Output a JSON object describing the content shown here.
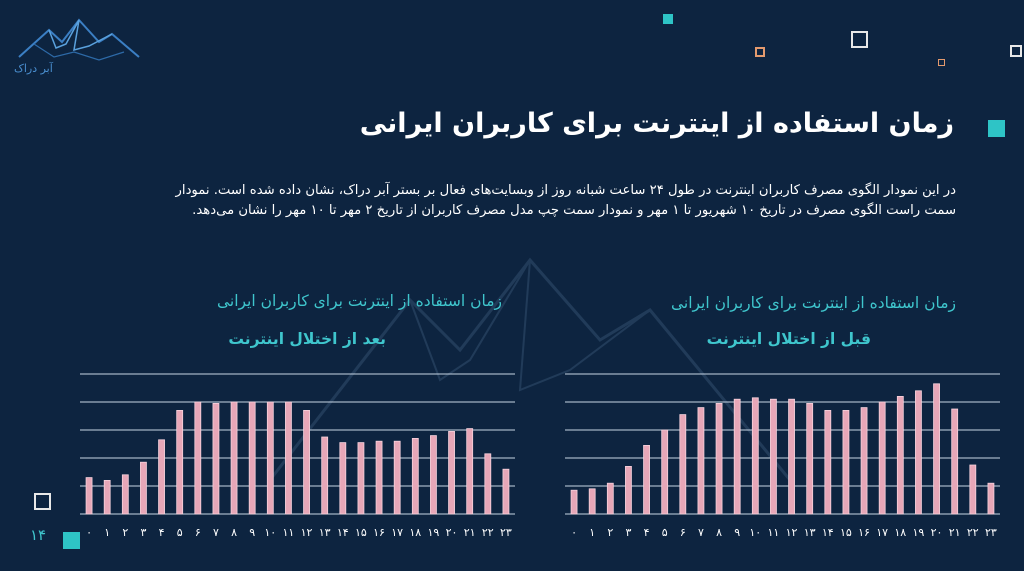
{
  "logo": {
    "text": "آبر دراک"
  },
  "title": "زمان استفاده از اینترنت برای کاربران ایرانی",
  "paragraph": "در این نمودار الگوی مصرف کاربران اینترنت در طول ۲۴ ساعت شبانه روز از وبسایت‌های فعال بر بستر آبر دراک، نشان داده شده است. نمودار سمت راست الگوی مصرف در تاریخ ۱۰ شهریور تا ۱ مهر و نمودار سمت چپ مدل مصرف کاربران از تاریخ ۲ مهر تا ۱۰ مهر را نشان می‌دهد.",
  "page_number": "۱۴",
  "colors": {
    "background": "#0d2440",
    "accent": "#2ec4c6",
    "bar": "#e7a7b8",
    "grid": "#c8d6e5",
    "deco_orange": "#e39a6e"
  },
  "chart_data": [
    {
      "type": "bar",
      "title": "زمان استفاده از اینترنت برای کاربران ایرانی",
      "subtitle": "بعد از اختلال اینترنت",
      "categories": [
        "۰",
        "۱",
        "۲",
        "۳",
        "۴",
        "۵",
        "۶",
        "۷",
        "۸",
        "۹",
        "۱۰",
        "۱۱",
        "۱۲",
        "۱۳",
        "۱۴",
        "۱۵",
        "۱۶",
        "۱۷",
        "۱۸",
        "۱۹",
        "۲۰",
        "۲۱",
        "۲۲",
        "۲۳"
      ],
      "values": [
        26,
        24,
        28,
        37,
        53,
        74,
        80,
        79,
        80,
        80,
        80,
        80,
        74,
        55,
        51,
        51,
        52,
        52,
        54,
        56,
        59,
        61,
        43,
        32
      ],
      "ylim": [
        0,
        100
      ],
      "grid": true
    },
    {
      "type": "bar",
      "title": "زمان استفاده از اینترنت برای کاربران ایرانی",
      "subtitle": "قبل از اختلال اینترنت",
      "categories": [
        "۰",
        "۱",
        "۲",
        "۳",
        "۴",
        "۵",
        "۶",
        "۷",
        "۸",
        "۹",
        "۱۰",
        "۱۱",
        "۱۲",
        "۱۳",
        "۱۴",
        "۱۵",
        "۱۶",
        "۱۷",
        "۱۸",
        "۱۹",
        "۲۰",
        "۲۱",
        "۲۲",
        "۲۳"
      ],
      "values": [
        17,
        18,
        22,
        34,
        49,
        60,
        71,
        76,
        79,
        82,
        83,
        82,
        82,
        79,
        74,
        74,
        76,
        80,
        84,
        88,
        93,
        75,
        35,
        22
      ],
      "ylim": [
        0,
        100
      ],
      "grid": true
    }
  ]
}
